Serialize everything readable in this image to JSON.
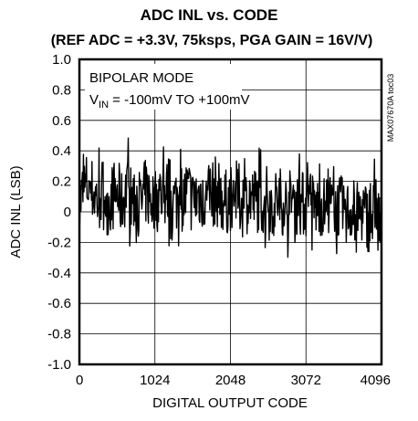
{
  "chart_data": {
    "type": "line",
    "title": "ADC INL vs. CODE",
    "subtitle": "(REF ADC = +3.3V, 75ksps, PGA GAIN = 16V/V)",
    "xlabel": "DIGITAL OUTPUT CODE",
    "ylabel": "ADC INL (LSB)",
    "xlim": [
      0,
      4096
    ],
    "ylim": [
      -1.0,
      1.0
    ],
    "xticks": [
      0,
      1024,
      2048,
      3072,
      4096
    ],
    "xtick_labels": [
      "0",
      "1024",
      "2048",
      "3072",
      "4096"
    ],
    "yticks": [
      1.0,
      0.8,
      0.6,
      0.4,
      0.2,
      0,
      -0.2,
      -0.4,
      -0.6,
      -0.8,
      -1.0
    ],
    "ytick_labels": [
      "1.0",
      "0.8",
      "0.6",
      "0.4",
      "0.2",
      "0",
      "-0.2",
      "-0.4",
      "-0.6",
      "-0.8",
      "-1.0"
    ],
    "grid": true,
    "annotation_line1": "BIPOLAR MODE",
    "annotation_line2_main": "V",
    "annotation_line2_sub": "IN",
    "annotation_line2_rest": " = -100mV TO +100mV",
    "side_code": "MAX07670A toc03",
    "series": [
      {
        "color": "#000000",
        "x": [
          0,
          64,
          128,
          192,
          256,
          320,
          384,
          448,
          512,
          576,
          640,
          704,
          768,
          832,
          896,
          960,
          1024,
          1088,
          1152,
          1216,
          1280,
          1344,
          1408,
          1472,
          1536,
          1600,
          1664,
          1728,
          1792,
          1856,
          1920,
          1984,
          2048,
          2112,
          2176,
          2240,
          2304,
          2368,
          2432,
          2496,
          2560,
          2624,
          2688,
          2752,
          2816,
          2880,
          2944,
          3008,
          3072,
          3136,
          3200,
          3264,
          3328,
          3392,
          3456,
          3520,
          3584,
          3648,
          3712,
          3776,
          3840,
          3904,
          3968,
          4032,
          4096
        ],
        "y": [
          0.05,
          0.15,
          0.18,
          0.12,
          0.08,
          0.14,
          0.06,
          0.1,
          0.12,
          0.05,
          0.16,
          0.08,
          0.11,
          0.04,
          0.13,
          0.09,
          0.07,
          0.12,
          0.1,
          0.14,
          0.06,
          0.11,
          0.09,
          0.13,
          0.07,
          0.1,
          0.12,
          0.08,
          0.11,
          0.14,
          0.09,
          0.06,
          0.1,
          0.12,
          0.08,
          0.05,
          0.11,
          0.07,
          0.09,
          0.06,
          0.1,
          0.04,
          0.08,
          0.07,
          0.03,
          0.09,
          0.05,
          0.06,
          0.04,
          0.07,
          0.02,
          0.05,
          0.03,
          0.06,
          0.01,
          0.04,
          0.02,
          0.0,
          0.03,
          -0.02,
          0.01,
          -0.04,
          -0.02,
          -0.06,
          -0.08
        ],
        "amplitude": [
          0.25,
          0.28,
          0.27,
          0.26,
          0.28,
          0.27,
          0.26,
          0.27,
          0.28,
          0.26,
          0.27,
          0.26,
          0.28,
          0.27,
          0.26,
          0.27,
          0.28,
          0.27,
          0.26,
          0.28,
          0.27,
          0.26,
          0.27,
          0.28,
          0.26,
          0.27,
          0.28,
          0.27,
          0.26,
          0.28,
          0.27,
          0.26,
          0.27,
          0.26,
          0.28,
          0.27,
          0.26,
          0.27,
          0.26,
          0.27,
          0.26,
          0.25,
          0.27,
          0.26,
          0.25,
          0.26,
          0.25,
          0.26,
          0.25,
          0.24,
          0.26,
          0.25,
          0.24,
          0.25,
          0.24,
          0.25,
          0.24,
          0.25,
          0.26,
          0.25,
          0.26,
          0.27,
          0.28,
          0.3,
          0.32
        ]
      }
    ]
  }
}
